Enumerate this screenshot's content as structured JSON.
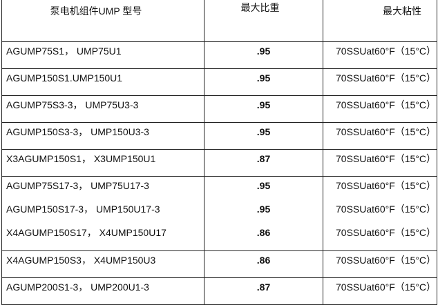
{
  "headers": [
    "泵电机组件UMP 型号",
    "最大比重",
    "最大粘性"
  ],
  "rows": [
    {
      "model": "AGUMP75S1， UMP75U1",
      "sg": ".95",
      "viscosity": "70SSUat60°F（15°C）"
    },
    {
      "model": "AGUMP150S1.UMP150U1",
      "sg": ".95",
      "viscosity": "70SSUat60°F（15°C）"
    },
    {
      "model": "AGUMP75S3-3， UMP75U3-3",
      "sg": ".95",
      "viscosity": "70SSUat60°F（15°C）"
    },
    {
      "model": "AGUMP150S3-3， UMP150U3-3",
      "sg": ".95",
      "viscosity": "70SSUat60°F（15°C）"
    },
    {
      "model": "X3AGUMP150S1， X3UMP150U1",
      "sg": ".87",
      "viscosity": "70SSUat60°F（15°C）"
    },
    {
      "model": "AGUMP75S17-3， UMP75U17-3",
      "sg": ".95",
      "viscosity": "70SSUat60°F（15°C）"
    },
    {
      "model": "AGUMP150S17-3， UMP150U17-3",
      "sg": ".95",
      "viscosity": "70SSUat60°F（15°C）"
    },
    {
      "model": "X4AGUMP150S17， X4UMP150U17",
      "sg": ".86",
      "viscosity": "70SSUat60°F（15°C）"
    },
    {
      "model": "X4AGUMP150S3， X4UMP150U3",
      "sg": ".86",
      "viscosity": "70SSUat60°F（15°C）"
    },
    {
      "model": "AGUMP200S1-3， UMP200U1-3",
      "sg": ".87",
      "viscosity": "70SSUat60°F（15°C）"
    }
  ]
}
